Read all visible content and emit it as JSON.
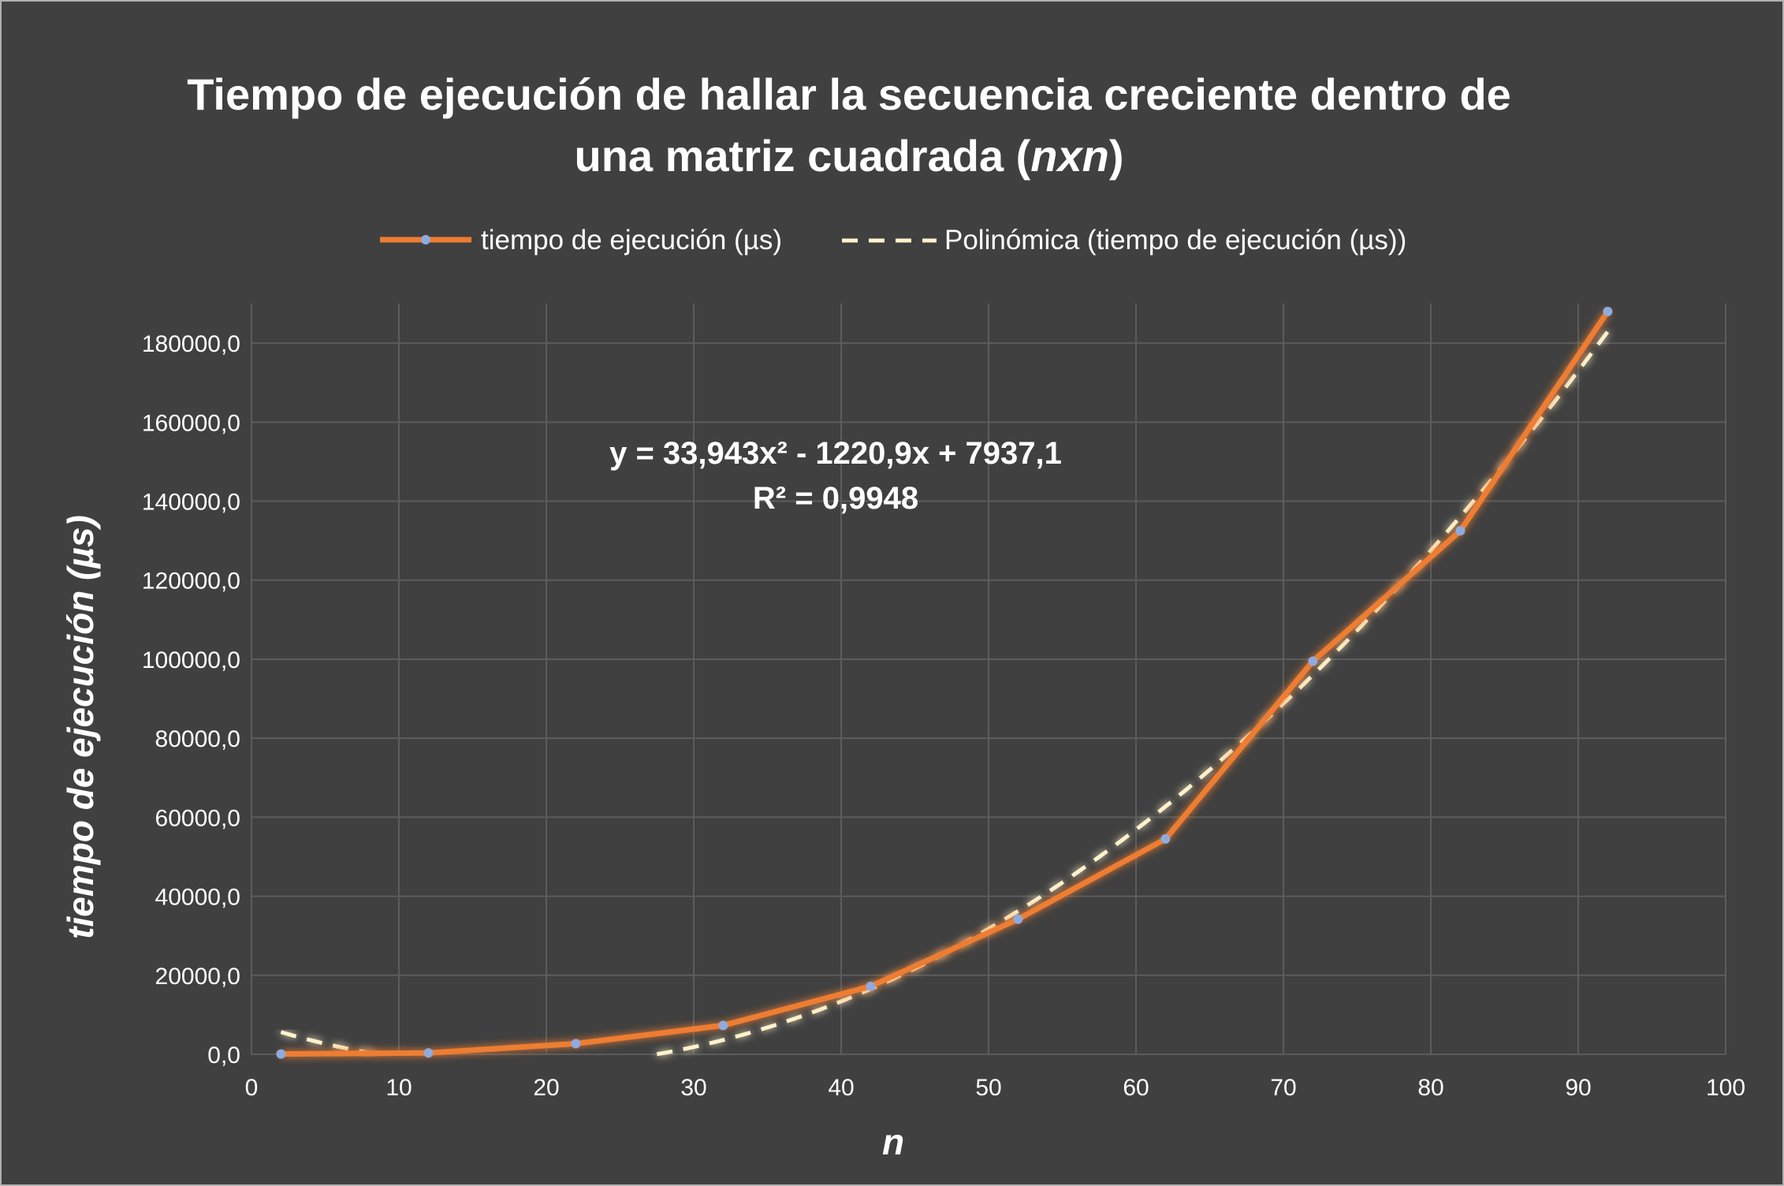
{
  "chart_data": {
    "type": "line",
    "title_line1": "Tiempo de ejecución de hallar la secuencia creciente dentro de",
    "title_line2_prefix": "una matriz cuadrada (",
    "title_line2_italic": "nxn",
    "title_line2_suffix": ")",
    "xlabel": "n",
    "ylabel": "tiempo de ejecución (µs)",
    "xlim": [
      0,
      100
    ],
    "ylim": [
      0,
      190000
    ],
    "x_ticks": [
      0,
      10,
      20,
      30,
      40,
      50,
      60,
      70,
      80,
      90,
      100
    ],
    "y_ticks": [
      0,
      20000,
      40000,
      60000,
      80000,
      100000,
      120000,
      140000,
      160000,
      180000
    ],
    "y_tick_labels": [
      "0,0",
      "20000,0",
      "40000,0",
      "60000,0",
      "80000,0",
      "100000,0",
      "120000,0",
      "140000,0",
      "160000,0",
      "180000,0"
    ],
    "grid": true,
    "legend_position": "top",
    "series": [
      {
        "name": "tiempo de ejecución (µs)",
        "color": "#ed7d31",
        "marker_color": "#8faadc",
        "x": [
          2,
          12,
          22,
          32,
          42,
          52,
          62,
          72,
          82,
          92
        ],
        "y": [
          80,
          350,
          2700,
          7300,
          17200,
          34200,
          54500,
          99500,
          132500,
          188000
        ]
      }
    ],
    "trendline": {
      "name": "Polinómica (tiempo de ejecución (µs))",
      "color": "#fff2cc",
      "type": "polynomial",
      "coefficients": {
        "a": 33.943,
        "b": -1220.9,
        "c": 7937.1
      },
      "x_range": [
        2,
        92
      ],
      "equation_label": "y = 33,943x² - 1220,9x + 7937,1",
      "r2_label": "R² = 0,9948"
    }
  }
}
